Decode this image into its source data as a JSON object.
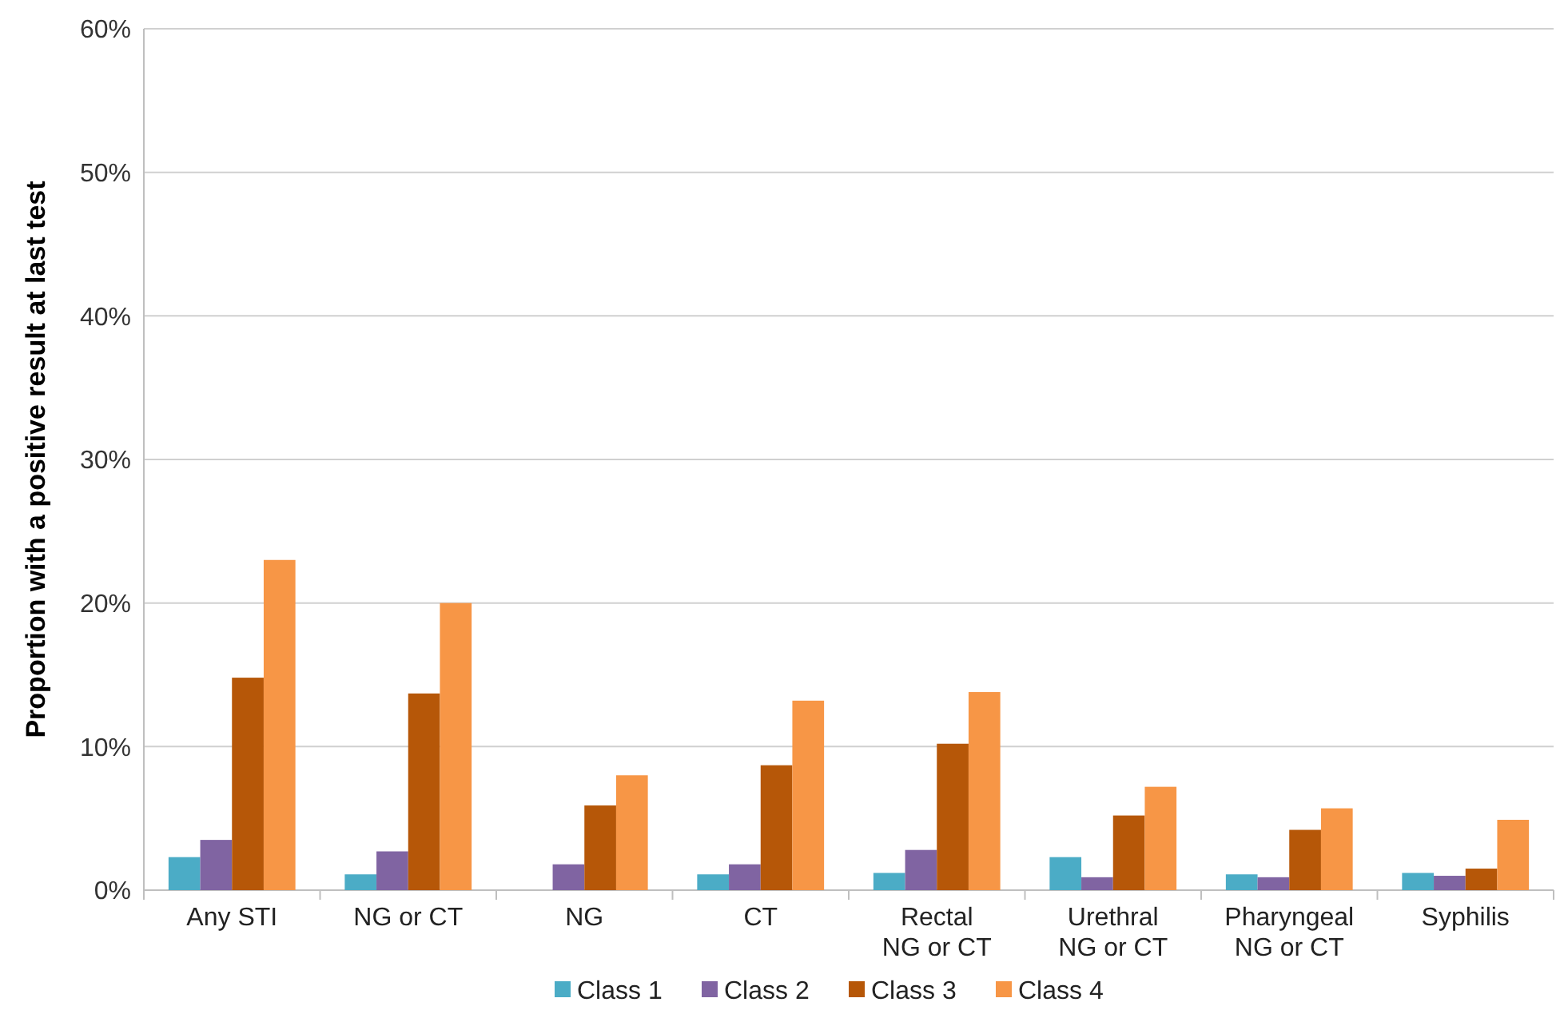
{
  "chart_data": {
    "type": "bar",
    "ylabel": "Proportion with a positive result at last test",
    "categories": [
      "Any STI",
      "NG or CT",
      "NG",
      "CT",
      "Rectal\nNG or CT",
      "Urethral\nNG or CT",
      "Pharyngeal\nNG or CT",
      "Syphilis"
    ],
    "series": [
      {
        "name": "Class 1",
        "color": "#4bacc6",
        "values": [
          2.3,
          1.1,
          0,
          1.1,
          1.2,
          2.3,
          1.1,
          1.2
        ]
      },
      {
        "name": "Class 2",
        "color": "#8064a2",
        "values": [
          3.5,
          2.7,
          1.8,
          1.8,
          2.8,
          0.9,
          0.9,
          1.0
        ]
      },
      {
        "name": "Class 3",
        "color": "#b65708",
        "values": [
          14.8,
          13.7,
          5.9,
          8.7,
          10.2,
          5.2,
          4.2,
          1.5
        ]
      },
      {
        "name": "Class 4",
        "color": "#f79646",
        "values": [
          23.0,
          20.0,
          8.0,
          13.2,
          13.8,
          7.2,
          5.7,
          4.9
        ]
      }
    ],
    "ylim": [
      0,
      60
    ],
    "yticks": [
      {
        "value": 0,
        "label": "0%"
      },
      {
        "value": 10,
        "label": "10%"
      },
      {
        "value": 20,
        "label": "20%"
      },
      {
        "value": 30,
        "label": "30%"
      },
      {
        "value": 40,
        "label": "40%"
      },
      {
        "value": 50,
        "label": "50%"
      },
      {
        "value": 60,
        "label": "60%"
      }
    ],
    "grid": "y",
    "legend": "bottom"
  }
}
